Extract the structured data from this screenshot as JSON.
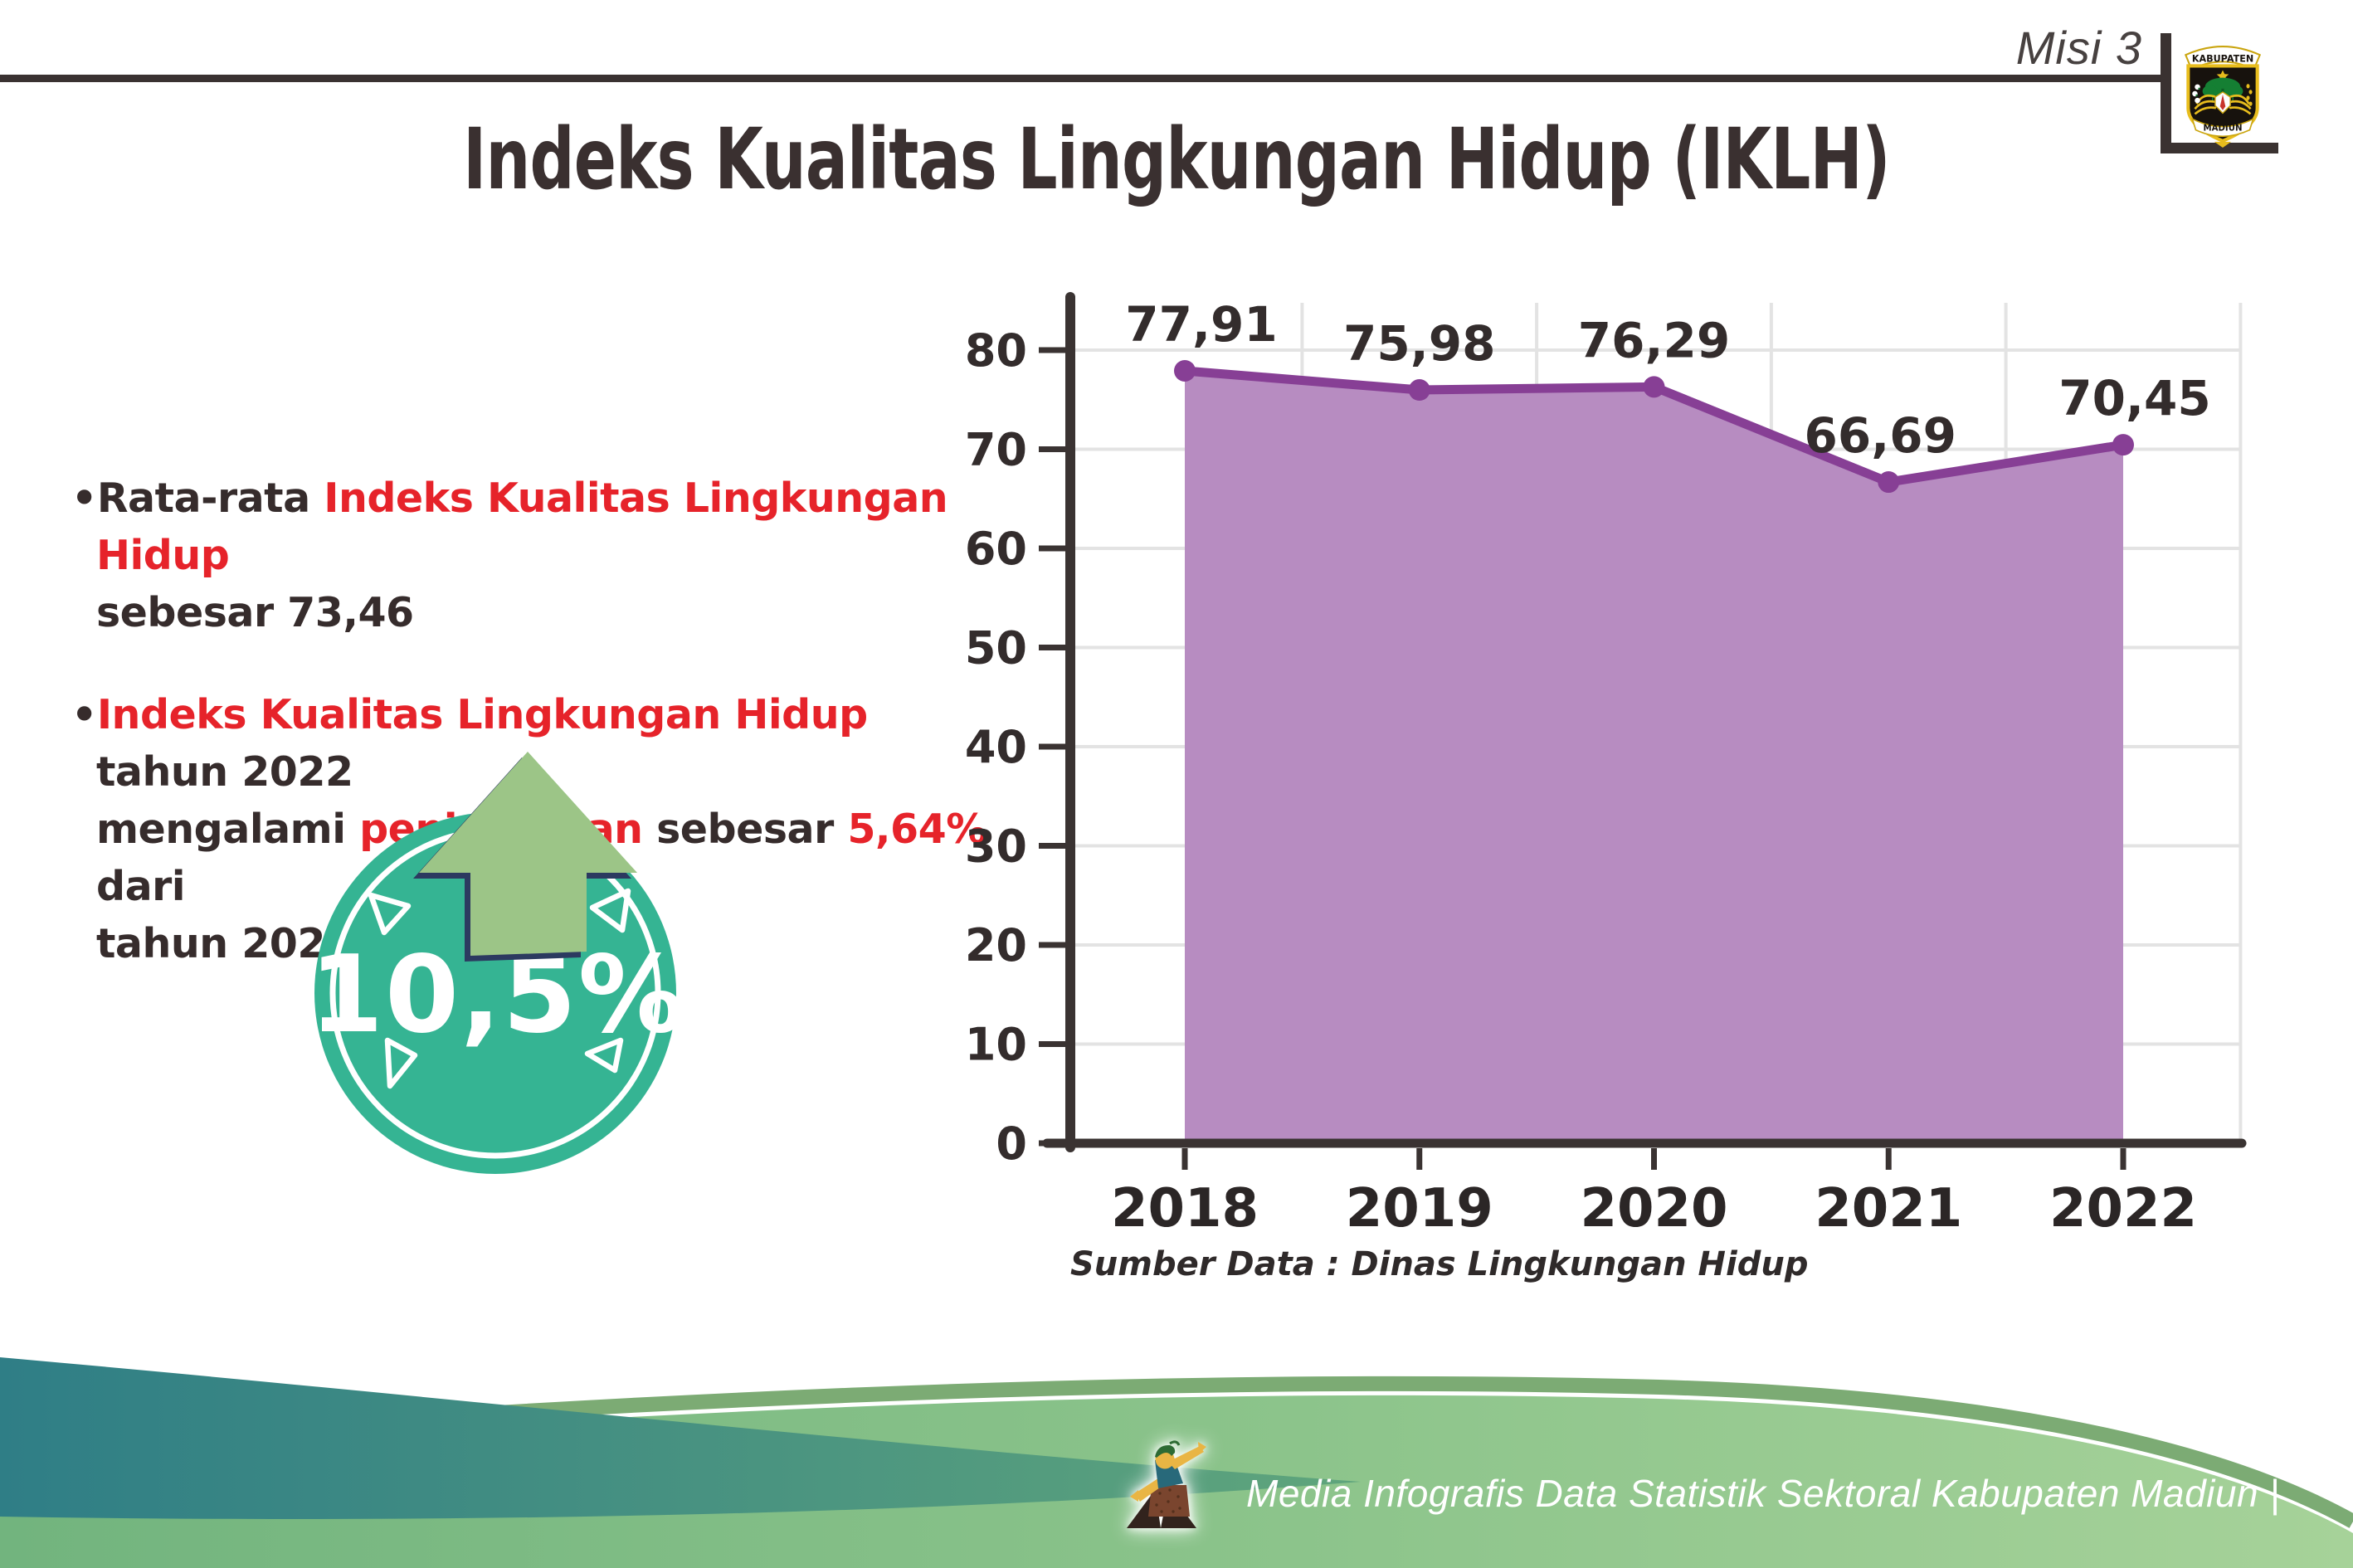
{
  "header": {
    "misi_label": "Misi 3"
  },
  "logo": {
    "top_banner": "KABUPATEN",
    "bottom_banner": "MADIUN"
  },
  "title": "Indeks Kualitas Lingkungan Hidup (IKLH)",
  "bullets": [
    {
      "lines": [
        [
          {
            "t": "•Rata-rata ",
            "c": "dark"
          },
          {
            "t": "Indeks Kualitas Lingkungan Hidup",
            "c": "red"
          }
        ],
        [
          {
            "t": "sebesar 73,46",
            "c": "dark"
          }
        ]
      ]
    },
    {
      "lines": [
        [
          {
            "t": "•",
            "c": "dark"
          },
          {
            "t": "Indeks Kualitas Lingkungan Hidup",
            "c": "red"
          },
          {
            "t": " tahun 2022",
            "c": "dark"
          }
        ],
        [
          {
            "t": "mengalami ",
            "c": "dark"
          },
          {
            "t": "peningkatan",
            "c": "red"
          },
          {
            "t": " sebesar ",
            "c": "dark"
          },
          {
            "t": "5,64%",
            "c": "red"
          },
          {
            "t": " dari",
            "c": "dark"
          }
        ],
        [
          {
            "t": "tahun 2021",
            "c": "dark"
          }
        ]
      ]
    }
  ],
  "badge": {
    "value": "10,5%"
  },
  "chart_data": {
    "type": "area",
    "categories": [
      "2018",
      "2019",
      "2020",
      "2021",
      "2022"
    ],
    "values": [
      77.91,
      75.98,
      76.29,
      66.69,
      70.45
    ],
    "value_labels": [
      "77,91",
      "75,98",
      "76,29",
      "66,69",
      "70,45"
    ],
    "series_name": "IKLH",
    "title": "",
    "xlabel": "",
    "ylabel": "",
    "ylim": [
      0,
      80
    ],
    "ytick_step": 10,
    "grid": true,
    "legend": "none",
    "line_color": "#873f95",
    "marker_color": "#873f95",
    "area_color": "#b78cc1",
    "axis_color": "#3a3332",
    "grid_color": "#e3e3e3",
    "label_color": "#332c2c"
  },
  "source_note": "Sumber Data : Dinas Lingkungan Hidup",
  "footer": {
    "credit": "Media Infografis Data Statistik Sektoral Kabupaten Madiun |"
  },
  "colors": {
    "accent_red": "#e6232a",
    "text_dark": "#362c2c",
    "badge_teal": "#35b493",
    "arrow_green": "#9cc587",
    "arrow_navy": "#2c3a60",
    "wave_teal_start": "#2f7e86",
    "wave_teal_end": "#5fa57c",
    "wave_green_start": "#72b47e",
    "wave_green_end": "#a6d299",
    "wave_rim": "#7cab74"
  }
}
